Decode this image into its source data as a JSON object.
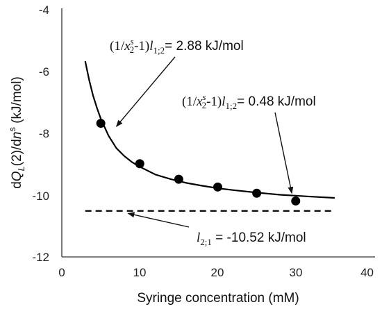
{
  "chart_data": {
    "type": "scatter",
    "title": "",
    "xlabel": "Syringe concentration (mM)",
    "ylabel": {
      "prefix": "d",
      "Q": "Q",
      "sub": "L",
      "mid": "(2)/d",
      "n": "n",
      "sup": "s",
      "unit": " (kJ/mol)"
    },
    "xlim": [
      0,
      40
    ],
    "ylim": [
      -12,
      -4
    ],
    "xticks": [
      "0",
      "10",
      "20",
      "30",
      "40"
    ],
    "yticks": [
      "-4",
      "-6",
      "-8",
      "-10",
      "-12"
    ],
    "grid": false,
    "series": [
      {
        "kind": "points",
        "x": [
          5,
          10,
          15,
          20,
          25,
          30
        ],
        "y": [
          -7.7,
          -9.0,
          -9.5,
          -9.75,
          -9.95,
          -10.2
        ]
      },
      {
        "kind": "fit-curve",
        "x": [
          3,
          3.5,
          4,
          4.5,
          5,
          6,
          7,
          8,
          9,
          10,
          12,
          14,
          16,
          18,
          20,
          22,
          25,
          28,
          30,
          32,
          35
        ],
        "y": [
          -5.7,
          -6.3,
          -6.8,
          -7.2,
          -7.55,
          -8.1,
          -8.5,
          -8.75,
          -8.95,
          -9.1,
          -9.35,
          -9.5,
          -9.62,
          -9.71,
          -9.79,
          -9.85,
          -9.93,
          -10.0,
          -10.03,
          -10.06,
          -10.1
        ]
      },
      {
        "kind": "dashed-line",
        "x": [
          3,
          35
        ],
        "y": [
          -10.52,
          -10.52
        ]
      }
    ],
    "annotations": [
      {
        "id": "ann1",
        "open": "(1/",
        "x": "x",
        "xsup": "s",
        "xsub": "2",
        "minus": "-1)",
        "l": "l",
        "lsub": "1;2",
        "value": "= 2.88 kJ/mol",
        "arrow_to": [
          7,
          -7.8
        ]
      },
      {
        "id": "ann2",
        "open": "(1/",
        "x": "x",
        "xsup": "s",
        "xsub": "2",
        "minus": "-1)",
        "l": "l",
        "lsub": "1;2",
        "value": "= 0.48 kJ/mol",
        "arrow_to": [
          29.5,
          -9.95
        ]
      },
      {
        "id": "ann3",
        "l": "l",
        "lsub": "2;1",
        "value": " = -10.52 kJ/mol",
        "arrow_to": [
          8.5,
          -10.6
        ]
      }
    ]
  }
}
